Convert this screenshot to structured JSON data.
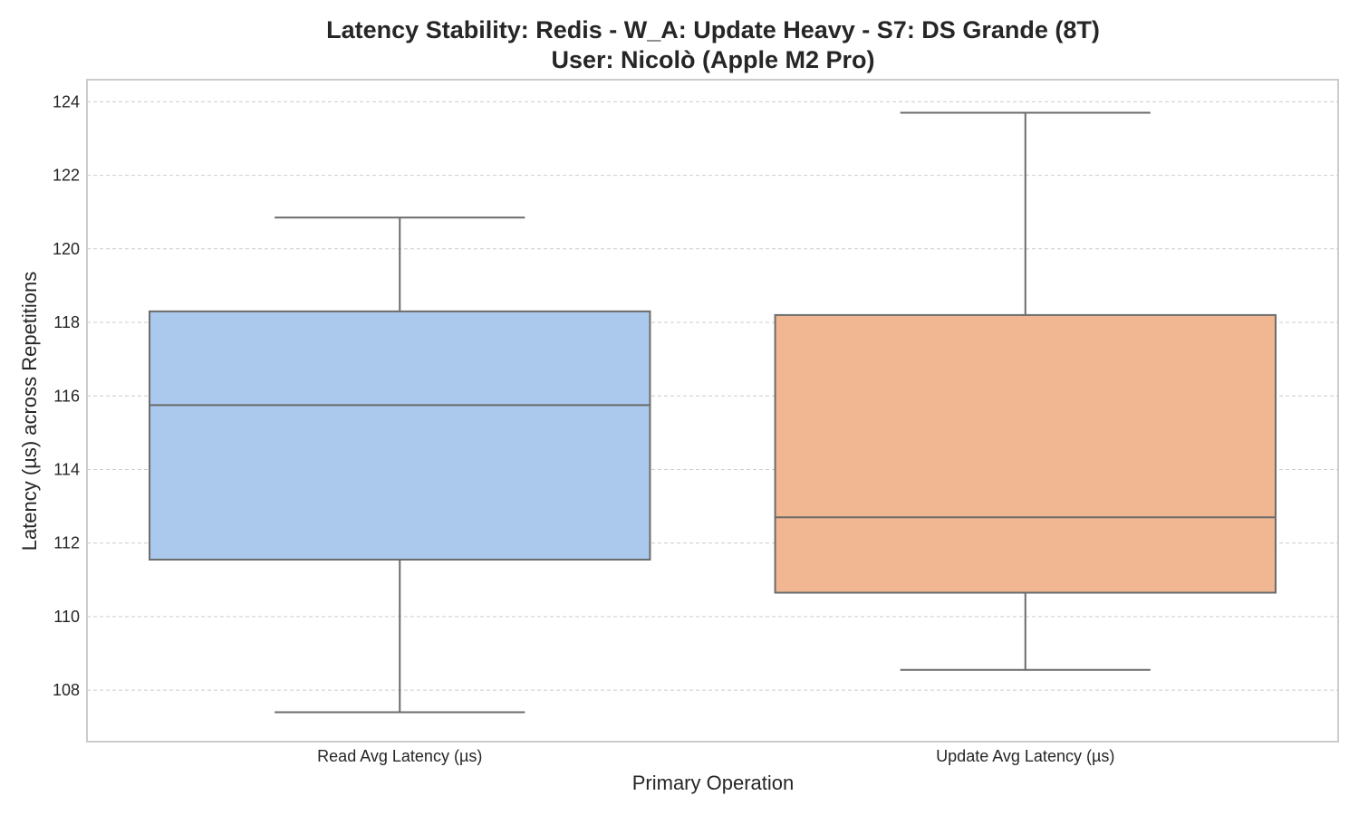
{
  "chart_data": {
    "type": "box",
    "title": "Latency Stability: Redis - W_A: Update Heavy - S7: DS Grande (8T)",
    "subtitle": "User: Nicolò (Apple M2 Pro)",
    "xlabel": "Primary Operation",
    "ylabel": "Latency (µs) across Repetitions",
    "ylim": [
      106.6,
      124.6
    ],
    "yticks": [
      108,
      110,
      112,
      114,
      116,
      118,
      120,
      122,
      124
    ],
    "grid": true,
    "categories": [
      "Read Avg Latency (µs)",
      "Update Avg Latency (µs)"
    ],
    "boxes": [
      {
        "category": "Read Avg Latency (µs)",
        "whisker_low": 107.4,
        "q1": 111.55,
        "median": 115.75,
        "q3": 118.3,
        "whisker_high": 120.85,
        "color": "#abc9ec"
      },
      {
        "category": "Update Avg Latency (µs)",
        "whisker_low": 108.55,
        "q1": 110.65,
        "median": 112.7,
        "q3": 118.2,
        "whisker_high": 123.7,
        "color": "#f0b792"
      }
    ]
  }
}
